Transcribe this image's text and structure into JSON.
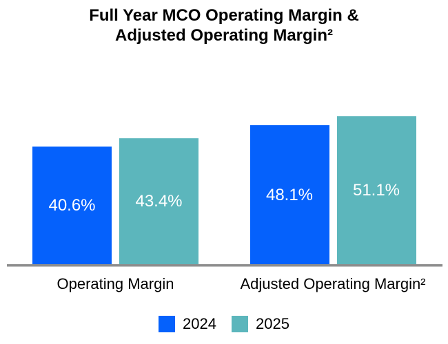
{
  "title": {
    "line1": "Full Year MCO Operating Margin &",
    "line2": "Adjusted Operating Margin²"
  },
  "chart_data": {
    "type": "bar",
    "title": "Full Year MCO Operating Margin & Adjusted Operating Margin²",
    "categories": [
      "Operating Margin",
      "Adjusted Operating Margin²"
    ],
    "series": [
      {
        "name": "2024",
        "color": "#0561FC",
        "values": [
          40.6,
          48.1
        ],
        "value_labels": [
          "40.6%",
          "48.1%"
        ]
      },
      {
        "name": "2025",
        "color": "#5CB6BC",
        "values": [
          43.4,
          51.1
        ],
        "value_labels": [
          "43.4%",
          "51.1%"
        ]
      }
    ],
    "ylim": [
      0,
      55
    ],
    "grid": false,
    "legend_position": "bottom",
    "value_label_color": "#FFFFFF",
    "axis_line_color": "#8E8E8E",
    "text_color": "#000000",
    "background_color": "#FFFFFF"
  }
}
